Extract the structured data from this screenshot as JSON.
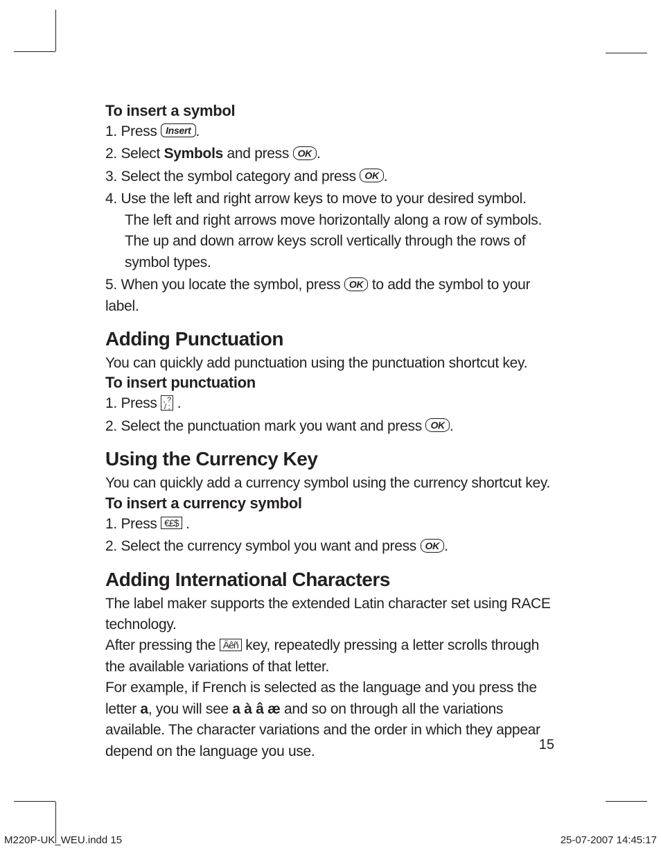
{
  "section_symbol": {
    "heading": "To insert a symbol",
    "steps": {
      "s1_pre": "1.  Press ",
      "s1_post": ".",
      "s2_pre": "2.  Select ",
      "s2_bold": "Symbols",
      "s2_mid": " and press ",
      "s2_post": ".",
      "s3_pre": "3.  Select the symbol category and press ",
      "s3_post": ".",
      "s4": "4.  Use the left and right arrow keys to move to your desired symbol.",
      "s4_indent": "The left and right arrows move horizontally along a row of symbols. The up and down arrow keys scroll vertically through the rows of symbol types.",
      "s5_pre": "5.  When you locate the symbol, press ",
      "s5_post": " to add the symbol to your label."
    }
  },
  "section_punctuation": {
    "heading": "Adding Punctuation",
    "intro": "You can quickly add punctuation using the punctuation shortcut key.",
    "subheading": "To insert punctuation",
    "steps": {
      "s1_pre": "1.  Press ",
      "s1_post": " .",
      "s2_pre": "2.  Select the punctuation mark you want and press ",
      "s2_post": "."
    }
  },
  "section_currency": {
    "heading": "Using the Currency Key",
    "intro": "You can quickly add a currency symbol using the currency shortcut key.",
    "subheading": "To insert a currency symbol",
    "steps": {
      "s1_pre": "1.  Press ",
      "s1_post": " .",
      "s2_pre": "2.  Select the currency symbol you want and press ",
      "s2_post": "."
    }
  },
  "section_intl": {
    "heading": "Adding International Characters",
    "p1": "The label maker supports the extended Latin character set using RACE technology.",
    "p2_pre": "After pressing the  ",
    "p2_post": " key, repeatedly pressing a letter scrolls through the available variations of that letter.",
    "p3_pre": "For example, if French is selected as the language and you press the letter ",
    "p3_bold1": "a",
    "p3_mid": ", you will see ",
    "p3_bold2": "a à â æ",
    "p3_post": " and so on through all the variations available. The character variations and the order in which they appear depend on the language you use."
  },
  "keys": {
    "insert": "Insert",
    "ok": "OK",
    "currency": "€£$",
    "accent": "Äêñ",
    "punc_top": ", ?",
    "punc_bot": "/ ;"
  },
  "page_number": "15",
  "footer_left": "M220P-UK_WEU.indd   15",
  "footer_right": "25-07-2007   14:45:17"
}
